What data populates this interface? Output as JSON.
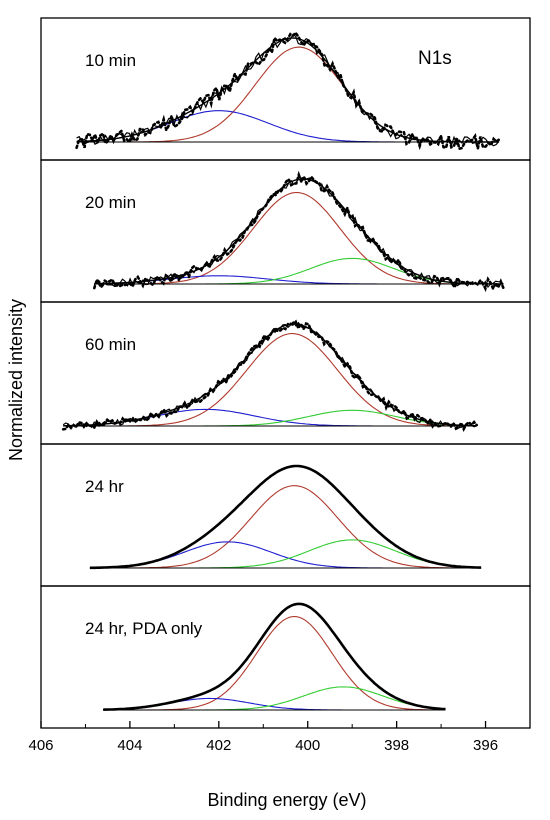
{
  "chart_data": {
    "type": "line",
    "xlabel": "Binding energy (eV)",
    "ylabel": "Normalized intensity",
    "xlim": [
      406,
      395
    ],
    "x_reversed": true,
    "x_ticks": [
      406,
      404,
      402,
      400,
      398,
      396
    ],
    "x_tick_labels": [
      "406",
      "404",
      "402",
      "400",
      "398",
      "396"
    ],
    "element_label": "N1s",
    "colors": {
      "envelope": "#000000",
      "component_1": "#b03a2e",
      "component_2": "#1f1fd0",
      "component_3": "#33cc33",
      "frame": "#000000"
    },
    "panels": [
      {
        "label": "10 min",
        "range": [
          405.2,
          395.7
        ],
        "components": [
          {
            "color": "#b03a2e",
            "center": 400.2,
            "height": 1.0,
            "fwhm": 2.3
          },
          {
            "color": "#1f1fd0",
            "center": 402.0,
            "height": 0.33,
            "fwhm": 2.6
          }
        ],
        "envelope_height": 1.02,
        "noise": 0.07,
        "has_raw": true
      },
      {
        "label": "20 min",
        "range": [
          404.8,
          395.6
        ],
        "components": [
          {
            "color": "#b03a2e",
            "center": 400.25,
            "height": 1.0,
            "fwhm": 2.3
          },
          {
            "color": "#1f1fd0",
            "center": 402.0,
            "height": 0.09,
            "fwhm": 2.6
          },
          {
            "color": "#33cc33",
            "center": 399.0,
            "height": 0.28,
            "fwhm": 2.2
          }
        ],
        "envelope_height": 1.03,
        "noise": 0.05,
        "has_raw": true
      },
      {
        "label": "60 min",
        "range": [
          405.5,
          396.2
        ],
        "components": [
          {
            "color": "#b03a2e",
            "center": 400.35,
            "height": 1.0,
            "fwhm": 2.4
          },
          {
            "color": "#1f1fd0",
            "center": 402.3,
            "height": 0.18,
            "fwhm": 2.6
          },
          {
            "color": "#33cc33",
            "center": 399.0,
            "height": 0.17,
            "fwhm": 2.3
          }
        ],
        "envelope_height": 1.0,
        "noise": 0.04,
        "has_raw": true
      },
      {
        "label": "24 hr",
        "range": [
          404.9,
          396.1
        ],
        "components": [
          {
            "color": "#b03a2e",
            "center": 400.3,
            "height": 0.85,
            "fwhm": 2.3
          },
          {
            "color": "#1f1fd0",
            "center": 401.8,
            "height": 0.27,
            "fwhm": 2.3
          },
          {
            "color": "#33cc33",
            "center": 399.0,
            "height": 0.29,
            "fwhm": 2.3
          }
        ],
        "envelope_height": 1.0,
        "noise": 0,
        "has_raw": false
      },
      {
        "label": "24 hr, PDA only",
        "range": [
          404.6,
          396.9
        ],
        "components": [
          {
            "color": "#b03a2e",
            "center": 400.3,
            "height": 0.97,
            "fwhm": 2.0
          },
          {
            "color": "#1f1fd0",
            "center": 402.2,
            "height": 0.12,
            "fwhm": 2.1
          },
          {
            "color": "#33cc33",
            "center": 399.2,
            "height": 0.24,
            "fwhm": 2.1
          }
        ],
        "envelope_height": 1.04,
        "noise": 0,
        "has_raw": false
      }
    ]
  }
}
